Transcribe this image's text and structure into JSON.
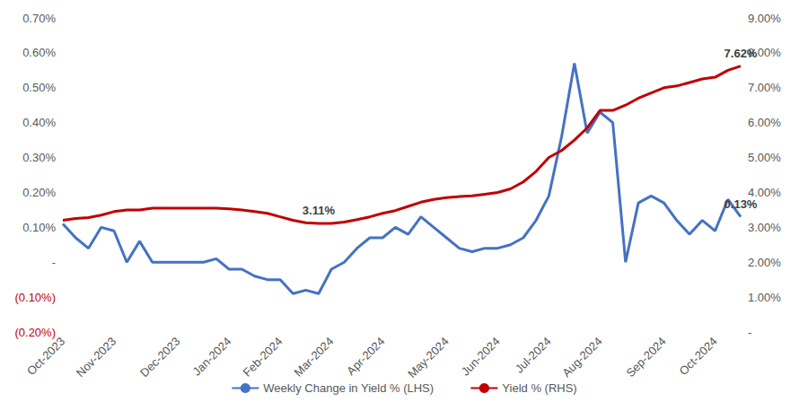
{
  "chart_data": {
    "type": "line",
    "categories": [
      "Oct-2023",
      null,
      null,
      null,
      "Nov-2023",
      null,
      null,
      null,
      null,
      "Dec-2023",
      null,
      null,
      null,
      "Jan-2024",
      null,
      null,
      null,
      "Feb-2024",
      null,
      null,
      null,
      "Mar-2024",
      null,
      null,
      null,
      "Apr-2024",
      null,
      null,
      null,
      null,
      "May-2024",
      null,
      null,
      null,
      "Jun-2024",
      null,
      null,
      null,
      "Jul-2024",
      null,
      null,
      null,
      "Aug-2024",
      null,
      null,
      null,
      null,
      "Sep-2024",
      null,
      null,
      null,
      "Oct-2024",
      null,
      null
    ],
    "series": [
      {
        "name": "Weekly Change in Yield % (LHS)",
        "color": "#4472C4",
        "marker": "none",
        "values": [
          0.11,
          0.07,
          0.04,
          0.1,
          0.09,
          0.0,
          0.06,
          0.0,
          0.0,
          0.0,
          0.0,
          0.0,
          0.01,
          -0.02,
          -0.02,
          -0.04,
          -0.05,
          -0.05,
          -0.09,
          -0.08,
          -0.09,
          -0.02,
          0.0,
          0.04,
          0.07,
          0.07,
          0.1,
          0.08,
          0.13,
          0.1,
          0.07,
          0.04,
          0.03,
          0.04,
          0.04,
          0.05,
          0.07,
          0.12,
          0.19,
          0.36,
          0.57,
          0.37,
          0.43,
          0.4,
          0.0,
          0.17,
          0.19,
          0.17,
          0.12,
          0.08,
          0.12,
          0.09,
          0.18,
          0.13
        ]
      },
      {
        "name": "Yield % (RHS)",
        "color": "#C00000",
        "marker": "none",
        "axis": "y2",
        "values": [
          3.2,
          3.25,
          3.28,
          3.35,
          3.45,
          3.5,
          3.5,
          3.55,
          3.55,
          3.55,
          3.55,
          3.55,
          3.55,
          3.53,
          3.5,
          3.45,
          3.4,
          3.3,
          3.2,
          3.13,
          3.11,
          3.11,
          3.15,
          3.22,
          3.3,
          3.4,
          3.48,
          3.6,
          3.72,
          3.8,
          3.85,
          3.88,
          3.9,
          3.95,
          4.0,
          4.1,
          4.3,
          4.6,
          5.0,
          5.2,
          5.5,
          5.85,
          6.35,
          6.35,
          6.5,
          6.7,
          6.85,
          7.0,
          7.05,
          7.15,
          7.25,
          7.3,
          7.5,
          7.62
        ]
      }
    ],
    "ylim": [
      -0.2,
      0.7
    ],
    "yticks": [
      {
        "value": -0.2,
        "label": "(0.20%)"
      },
      {
        "value": -0.1,
        "label": "(0.10%)"
      },
      {
        "value": 0,
        "label": "-"
      },
      {
        "value": 0.1,
        "label": "0.10%"
      },
      {
        "value": 0.2,
        "label": "0.20%"
      },
      {
        "value": 0.3,
        "label": "0.30%"
      },
      {
        "value": 0.4,
        "label": "0.40%"
      },
      {
        "value": 0.5,
        "label": "0.50%"
      },
      {
        "value": 0.6,
        "label": "0.60%"
      },
      {
        "value": 0.7,
        "label": "0.70%"
      }
    ],
    "y2lim": [
      0,
      9
    ],
    "y2ticks": [
      {
        "value": 0,
        "label": "-"
      },
      {
        "value": 1,
        "label": "1.00%"
      },
      {
        "value": 2,
        "label": "2.00%"
      },
      {
        "value": 3,
        "label": "3.00%"
      },
      {
        "value": 4,
        "label": "4.00%"
      },
      {
        "value": 5,
        "label": "5.00%"
      },
      {
        "value": 6,
        "label": "6.00%"
      },
      {
        "value": 7,
        "label": "7.00%"
      },
      {
        "value": 8,
        "label": "8.00%"
      },
      {
        "value": 9,
        "label": "9.00%"
      }
    ],
    "annotations": [
      {
        "text": "3.11%",
        "series": "Yield % (RHS)",
        "index": 20,
        "value": 3.11
      },
      {
        "text": "7.62%",
        "series": "Yield % (RHS)",
        "index": 53,
        "value": 7.62
      },
      {
        "text": "0.13%",
        "series": "Weekly Change in Yield % (LHS)",
        "index": 53,
        "value": 0.13
      }
    ],
    "grid": false,
    "legend": "bottom"
  }
}
